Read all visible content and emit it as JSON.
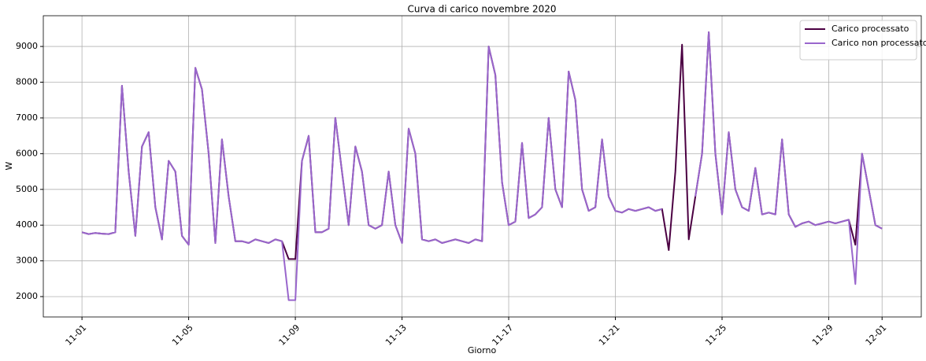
{
  "chart_data": {
    "type": "line",
    "title": "Curva di carico novembre 2020",
    "x_label": "Giorno",
    "y_label": "W",
    "x": [
      0,
      0.25,
      0.5,
      0.75,
      1,
      1.25,
      1.5,
      1.75,
      2,
      2.25,
      2.5,
      2.75,
      3,
      3.25,
      3.5,
      3.75,
      4,
      4.25,
      4.5,
      4.75,
      5,
      5.25,
      5.5,
      5.75,
      6,
      6.25,
      6.5,
      6.75,
      7,
      7.25,
      7.5,
      7.75,
      8,
      8.25,
      8.5,
      8.75,
      9,
      9.25,
      9.5,
      9.75,
      10,
      10.25,
      10.5,
      10.75,
      11,
      11.25,
      11.5,
      11.75,
      12,
      12.25,
      12.5,
      12.75,
      13,
      13.25,
      13.5,
      13.75,
      14,
      14.25,
      14.5,
      14.75,
      15,
      15.25,
      15.5,
      15.75,
      16,
      16.25,
      16.5,
      16.75,
      17,
      17.25,
      17.5,
      17.75,
      18,
      18.25,
      18.5,
      18.75,
      19,
      19.25,
      19.5,
      19.75,
      20,
      20.25,
      20.5,
      20.75,
      21,
      21.25,
      21.5,
      21.75,
      22,
      22.25,
      22.5,
      22.75,
      23,
      23.25,
      23.5,
      23.75,
      24,
      24.25,
      24.5,
      24.75,
      25,
      25.25,
      25.5,
      25.75,
      26,
      26.25,
      26.5,
      26.75,
      27,
      27.25,
      27.5,
      27.75,
      28,
      28.25,
      28.5,
      28.75,
      29,
      29.25,
      29.5,
      29.75,
      30
    ],
    "series": [
      {
        "name": "Carico processato",
        "color": "#4b0042",
        "values": [
          3800,
          3750,
          3780,
          3760,
          3750,
          3800,
          7900,
          5500,
          3700,
          6200,
          6600,
          4500,
          3600,
          5800,
          5500,
          3700,
          3450,
          8400,
          7800,
          6000,
          3500,
          6400,
          4800,
          3550,
          3550,
          3500,
          3600,
          3550,
          3500,
          3600,
          3550,
          3050,
          3050,
          5800,
          6500,
          3800,
          3800,
          3900,
          7000,
          5500,
          4000,
          6200,
          5500,
          4000,
          3900,
          4000,
          5500,
          4000,
          3500,
          6700,
          6000,
          3600,
          3550,
          3600,
          3500,
          3550,
          3600,
          3550,
          3500,
          3600,
          3550,
          9000,
          8200,
          5200,
          4000,
          4100,
          6300,
          4200,
          4300,
          4500,
          7000,
          5000,
          4500,
          8300,
          7500,
          5000,
          4400,
          4500,
          6400,
          4800,
          4400,
          4350,
          4450,
          4400,
          4450,
          4500,
          4400,
          4450,
          3300,
          5500,
          9050,
          3600,
          4800,
          6000,
          9400,
          6000,
          4300,
          6600,
          5000,
          4500,
          4400,
          5600,
          4300,
          4350,
          4300,
          6400,
          4300,
          3950,
          4050,
          4100,
          4000,
          4050,
          4100,
          4050,
          4100,
          4150,
          3450,
          6000,
          5000,
          4000,
          3900
        ]
      },
      {
        "name": "Carico non processato",
        "color": "#9966cc",
        "values": [
          3800,
          3750,
          3780,
          3760,
          3750,
          3800,
          7900,
          5500,
          3700,
          6200,
          6600,
          4500,
          3600,
          5800,
          5500,
          3700,
          3450,
          8400,
          7800,
          6000,
          3500,
          6400,
          4800,
          3550,
          3550,
          3500,
          3600,
          3550,
          3500,
          3600,
          3550,
          1900,
          1900,
          5800,
          6500,
          3800,
          3800,
          3900,
          7000,
          5500,
          4000,
          6200,
          5500,
          4000,
          3900,
          4000,
          5500,
          4000,
          3500,
          6700,
          6000,
          3600,
          3550,
          3600,
          3500,
          3550,
          3600,
          3550,
          3500,
          3600,
          3550,
          9000,
          8200,
          5200,
          4000,
          4100,
          6300,
          4200,
          4300,
          4500,
          7000,
          5000,
          4500,
          8300,
          7500,
          5000,
          4400,
          4500,
          6400,
          4800,
          4400,
          4350,
          4450,
          4400,
          4450,
          4500,
          4400,
          4450,
          null,
          null,
          null,
          null,
          4800,
          6000,
          9400,
          6000,
          4300,
          6600,
          5000,
          4500,
          4400,
          5600,
          4300,
          4350,
          4300,
          6400,
          4300,
          3950,
          4050,
          4100,
          4000,
          4050,
          4100,
          4050,
          4100,
          4150,
          2350,
          6000,
          5000,
          4000,
          3900
        ]
      }
    ],
    "xlim": [
      -1.45,
      31.47
    ],
    "xticks": [
      {
        "value": 0,
        "label": "11-01"
      },
      {
        "value": 4,
        "label": "11-05"
      },
      {
        "value": 8,
        "label": "11-09"
      },
      {
        "value": 12,
        "label": "11-13"
      },
      {
        "value": 16,
        "label": "11-17"
      },
      {
        "value": 20,
        "label": "11-21"
      },
      {
        "value": 24,
        "label": "11-25"
      },
      {
        "value": 28,
        "label": "11-29"
      },
      {
        "value": 30,
        "label": "12-01"
      }
    ],
    "ylim": [
      1430,
      9860
    ],
    "yticks": [
      2000,
      3000,
      4000,
      5000,
      6000,
      7000,
      8000,
      9000
    ],
    "grid": true,
    "legend": "upper right"
  }
}
